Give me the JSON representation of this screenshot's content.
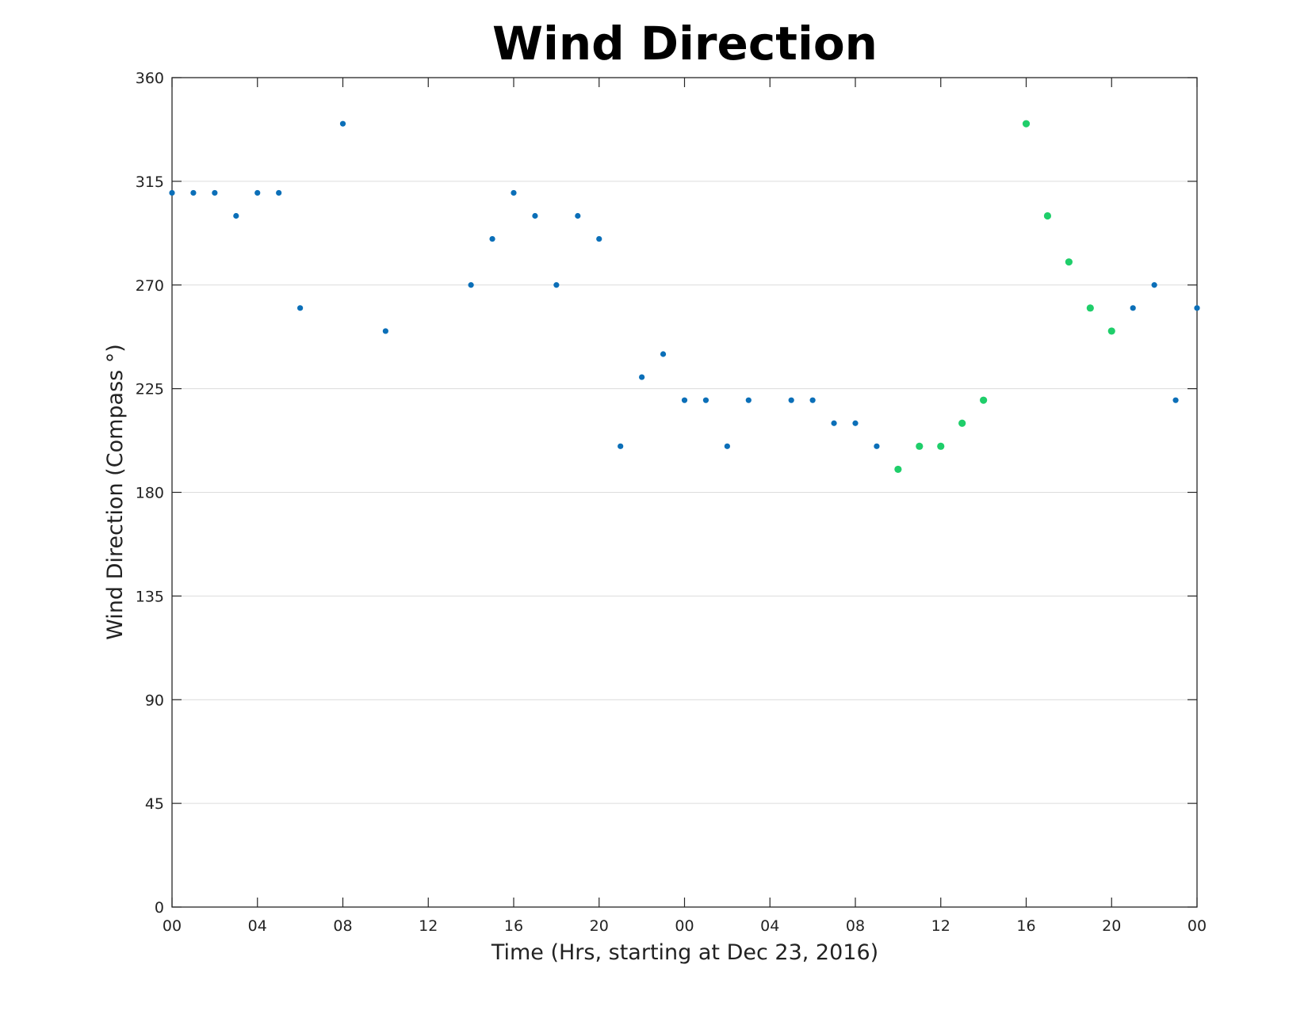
{
  "chart_data": {
    "type": "scatter",
    "title": "Wind Direction",
    "xlabel": "Time (Hrs, starting at Dec 23, 2016)",
    "ylabel": "Wind Direction (Compass °)",
    "x_unit": "datetime",
    "xlim": [
      "2016-12-23 00:00",
      "2016-12-25 00:00"
    ],
    "ylim": [
      0,
      360
    ],
    "x_tick_labels": [
      "00",
      "04",
      "08",
      "12",
      "16",
      "20",
      "00",
      "04",
      "08",
      "12",
      "16",
      "20",
      "00"
    ],
    "x_tick_values": [
      "2016-12-23 00:00",
      "2016-12-23 04:00",
      "2016-12-23 08:00",
      "2016-12-23 12:00",
      "2016-12-23 16:00",
      "2016-12-23 20:00",
      "2016-12-24 00:00",
      "2016-12-24 04:00",
      "2016-12-24 08:00",
      "2016-12-24 12:00",
      "2016-12-24 16:00",
      "2016-12-24 20:00",
      "2016-12-25 00:00"
    ],
    "y_ticks": [
      0,
      45,
      90,
      135,
      180,
      225,
      270,
      315,
      360
    ],
    "grid": "horizontal",
    "legend": "none",
    "series": [
      {
        "color": "#0b6fb8",
        "points": [
          [
            "2016-12-23 00:00",
            310
          ],
          [
            "2016-12-23 01:00",
            310
          ],
          [
            "2016-12-23 02:00",
            310
          ],
          [
            "2016-12-23 03:00",
            300
          ],
          [
            "2016-12-23 04:00",
            310
          ],
          [
            "2016-12-23 05:00",
            310
          ],
          [
            "2016-12-23 06:00",
            260
          ],
          [
            "2016-12-23 08:00",
            340
          ],
          [
            "2016-12-23 10:00",
            250
          ],
          [
            "2016-12-23 14:00",
            270
          ],
          [
            "2016-12-23 15:00",
            290
          ],
          [
            "2016-12-23 16:00",
            310
          ],
          [
            "2016-12-23 17:00",
            300
          ],
          [
            "2016-12-23 18:00",
            270
          ],
          [
            "2016-12-23 19:00",
            300
          ],
          [
            "2016-12-23 20:00",
            290
          ],
          [
            "2016-12-23 21:00",
            200
          ],
          [
            "2016-12-23 22:00",
            230
          ],
          [
            "2016-12-23 23:00",
            240
          ],
          [
            "2016-12-24 00:00",
            220
          ],
          [
            "2016-12-24 01:00",
            220
          ],
          [
            "2016-12-24 02:00",
            200
          ],
          [
            "2016-12-24 03:00",
            220
          ],
          [
            "2016-12-24 05:00",
            220
          ],
          [
            "2016-12-24 06:00",
            220
          ],
          [
            "2016-12-24 07:00",
            210
          ],
          [
            "2016-12-24 08:00",
            210
          ],
          [
            "2016-12-24 09:00",
            200
          ],
          [
            "2016-12-24 21:00",
            260
          ],
          [
            "2016-12-24 22:00",
            270
          ],
          [
            "2016-12-24 23:00",
            220
          ],
          [
            "2016-12-25 00:00",
            260
          ]
        ]
      },
      {
        "color": "#1fce6a",
        "points": [
          [
            "2016-12-24 10:00",
            190
          ],
          [
            "2016-12-24 11:00",
            200
          ],
          [
            "2016-12-24 12:00",
            200
          ],
          [
            "2016-12-24 13:00",
            210
          ],
          [
            "2016-12-24 14:00",
            220
          ],
          [
            "2016-12-24 16:00",
            340
          ],
          [
            "2016-12-24 17:00",
            300
          ],
          [
            "2016-12-24 18:00",
            280
          ],
          [
            "2016-12-24 19:00",
            260
          ],
          [
            "2016-12-24 20:00",
            250
          ]
        ]
      }
    ]
  }
}
